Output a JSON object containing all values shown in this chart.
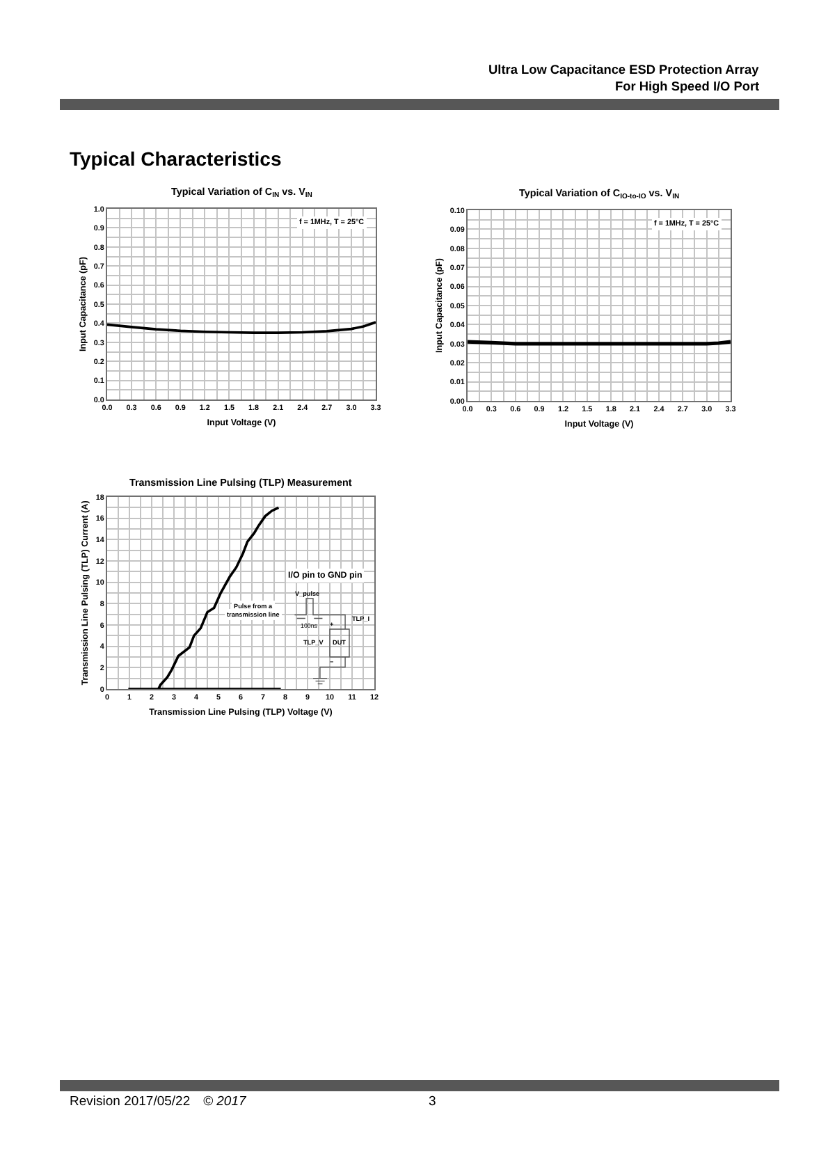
{
  "chart_data": [
    {
      "type": "other",
      "title": "Typical Characteristics",
      "annotations": [
        "Ultra Low Capacitance ESD Protection Array",
        "For High Speed I/O Port",
        "Revision 2017/05/22",
        "© 2017",
        "3"
      ]
    },
    {
      "type": "line",
      "title": "Typical Variation of C$_{IN}$ vs. V$_{IN}$",
      "xlabel": "Input Voltage (V)",
      "ylabel": "Input Capacitance (pF)",
      "annotations": [
        "f = 1MHz, T = 25°C"
      ],
      "x": [
        0,
        0.3,
        0.6,
        0.9,
        1.2,
        1.5,
        1.8,
        2.1,
        2.4,
        2.7,
        3.0,
        3.15,
        3.3
      ],
      "series": [
        {
          "color": "#000000",
          "values": [
            0.393,
            0.38,
            0.368,
            0.36,
            0.355,
            0.352,
            0.35,
            0.35,
            0.352,
            0.358,
            0.37,
            0.383,
            0.405
          ]
        }
      ],
      "xlim": [
        0,
        3.3
      ],
      "ylim": [
        0,
        1
      ],
      "xticks": [
        {
          "value": 0,
          "label": "0.0"
        },
        {
          "value": 0.15,
          "label": null
        },
        0.3,
        {
          "value": 0.45,
          "label": null
        },
        0.6,
        {
          "value": 0.75,
          "label": null
        },
        0.9,
        {
          "value": 1.05,
          "label": null
        },
        1.2,
        {
          "value": 1.35,
          "label": null
        },
        1.5,
        {
          "value": 1.65,
          "label": null
        },
        1.8,
        {
          "value": 1.95,
          "label": null
        },
        2.1,
        {
          "value": 2.25,
          "label": null
        },
        2.4,
        {
          "value": 2.55,
          "label": null
        },
        2.7,
        {
          "value": 2.85,
          "label": null
        },
        {
          "value": 3,
          "label": "3.0"
        },
        {
          "value": 3.15,
          "label": null
        },
        3.3
      ],
      "yticks": [
        {
          "value": 0,
          "label": "0.0"
        },
        {
          "value": 0.05,
          "label": null
        },
        0.1,
        {
          "value": 0.15,
          "label": null
        },
        0.2,
        {
          "value": 0.25,
          "label": null
        },
        0.3,
        {
          "value": 0.35,
          "label": null
        },
        0.4,
        {
          "value": 0.45,
          "label": null
        },
        0.5,
        {
          "value": 0.55,
          "label": null
        },
        0.6,
        {
          "value": 0.65,
          "label": null
        },
        0.7,
        {
          "value": 0.75,
          "label": null
        },
        0.8,
        {
          "value": 0.85,
          "label": null
        },
        0.9,
        {
          "value": 0.95,
          "label": null
        },
        {
          "value": 1,
          "label": "1.0"
        }
      ],
      "grid": true
    },
    {
      "type": "line",
      "title": "Typical Variation of C$_{IO-to-IO}$ vs. V$_{IN}$",
      "xlabel": "Input Voltage (V)",
      "ylabel": "Input Capacitance (pF)",
      "annotations": [
        "f = 1MHz, T = 25°C"
      ],
      "x": [
        0,
        0.3,
        0.6,
        0.9,
        1.2,
        1.5,
        1.8,
        2.1,
        2.4,
        2.7,
        3.0,
        3.15,
        3.3
      ],
      "series": [
        {
          "color": "#000000",
          "values": [
            0.031,
            0.0305,
            0.03,
            0.03,
            0.03,
            0.03,
            0.03,
            0.03,
            0.03,
            0.03,
            0.03,
            0.0303,
            0.031
          ]
        }
      ],
      "xlim": [
        0,
        3.3
      ],
      "ylim": [
        0,
        0.1
      ],
      "xticks": [
        {
          "value": 0,
          "label": "0.0"
        },
        {
          "value": 0.15,
          "label": null
        },
        0.3,
        {
          "value": 0.45,
          "label": null
        },
        0.6,
        {
          "value": 0.75,
          "label": null
        },
        0.9,
        {
          "value": 1.05,
          "label": null
        },
        1.2,
        {
          "value": 1.35,
          "label": null
        },
        1.5,
        {
          "value": 1.65,
          "label": null
        },
        1.8,
        {
          "value": 1.95,
          "label": null
        },
        2.1,
        {
          "value": 2.25,
          "label": null
        },
        2.4,
        {
          "value": 2.55,
          "label": null
        },
        2.7,
        {
          "value": 2.85,
          "label": null
        },
        {
          "value": 3,
          "label": "3.0"
        },
        {
          "value": 3.15,
          "label": null
        },
        3.3
      ],
      "yticks": [
        {
          "value": 0,
          "label": "0.00"
        },
        {
          "value": 0.005,
          "label": null
        },
        0.01,
        {
          "value": 0.015,
          "label": null
        },
        0.02,
        {
          "value": 0.025,
          "label": null
        },
        0.03,
        {
          "value": 0.035,
          "label": null
        },
        0.04,
        {
          "value": 0.045,
          "label": null
        },
        0.05,
        {
          "value": 0.055,
          "label": null
        },
        0.06,
        {
          "value": 0.065,
          "label": null
        },
        0.07,
        {
          "value": 0.075,
          "label": null
        },
        0.08,
        {
          "value": 0.085,
          "label": null
        },
        0.09,
        {
          "value": 0.095,
          "label": null
        },
        {
          "value": 0.1,
          "label": "0.10"
        }
      ],
      "grid": true
    },
    {
      "type": "line",
      "title": "Transmission Line Pulsing (TLP) Measurement",
      "xlabel": "Transmission Line Pulsing (TLP) Voltage (V)",
      "ylabel": "Transmission Line Pulsing (TLP) Current (A)",
      "annotations": [
        "I/O pin to GND pin",
        "V_pulse",
        "Pulse from a",
        "transmission line",
        "100ns",
        "TLP_I",
        "+",
        "TLP_V",
        "DUT",
        "−"
      ],
      "series": [
        {
          "color": "#000000",
          "x": [
            2.3,
            2.4,
            2.7,
            2.9,
            3.2,
            3.7,
            3.9,
            4.2,
            4.5,
            4.8,
            5.1,
            5.5,
            5.8,
            6.1,
            6.3,
            6.6,
            6.8,
            7.1,
            7.4,
            7.7
          ],
          "values": [
            0,
            0.4,
            1.1,
            1.8,
            3.1,
            3.9,
            5.0,
            5.7,
            7.2,
            7.6,
            9.0,
            10.5,
            11.4,
            12.7,
            13.8,
            14.6,
            15.3,
            16.2,
            16.7,
            17.0
          ]
        },
        {
          "color": "#000000",
          "x": [
            0.95,
            7.8
          ],
          "values": [
            0,
            0
          ]
        }
      ],
      "xlim": [
        0,
        12
      ],
      "ylim": [
        0,
        18
      ],
      "xticks": [
        0,
        {
          "value": 0.5,
          "label": null
        },
        1,
        {
          "value": 1.5,
          "label": null
        },
        2,
        {
          "value": 2.5,
          "label": null
        },
        3,
        {
          "value": 3.5,
          "label": null
        },
        4,
        {
          "value": 4.5,
          "label": null
        },
        5,
        {
          "value": 5.5,
          "label": null
        },
        6,
        {
          "value": 6.5,
          "label": null
        },
        7,
        {
          "value": 7.5,
          "label": null
        },
        8,
        {
          "value": 8.5,
          "label": null
        },
        9,
        {
          "value": 9.5,
          "label": null
        },
        10,
        {
          "value": 10.5,
          "label": null
        },
        11,
        {
          "value": 11.5,
          "label": null
        },
        12
      ],
      "yticks": [
        0,
        {
          "value": 1,
          "label": null
        },
        2,
        {
          "value": 3,
          "label": null
        },
        4,
        {
          "value": 5,
          "label": null
        },
        6,
        {
          "value": 7,
          "label": null
        },
        8,
        {
          "value": 9,
          "label": null
        },
        10,
        {
          "value": 11,
          "label": null
        },
        12,
        {
          "value": 13,
          "label": null
        },
        14,
        {
          "value": 15,
          "label": null
        },
        16,
        {
          "value": 17,
          "label": null
        },
        18
      ],
      "grid": true
    }
  ]
}
